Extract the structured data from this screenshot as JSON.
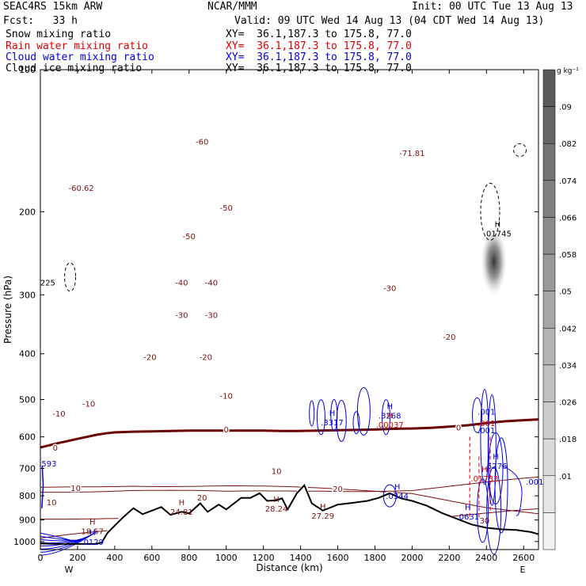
{
  "header": {
    "model": "SEAC4RS 15km ARW",
    "center": "NCAR/MMM",
    "init": "Init: 00 UTC Tue 13 Aug 13",
    "fcst": "Fcst:   33 h",
    "valid": "Valid: 09 UTC Wed 14 Aug 13 (04 CDT Wed 14 Aug 13)"
  },
  "legend": [
    {
      "name": "Snow mixing ratio",
      "color": "#000000",
      "xy": "XY=  36.1,187.3 to 175.8, 77.0"
    },
    {
      "name": "Rain water mixing ratio",
      "color": "#e00000",
      "xy": "XY=  36.1,187.3 to 175.8, 77.0"
    },
    {
      "name": "Cloud water mixing ratio",
      "color": "#0000e0",
      "xy": "XY=  36.1,187.3 to 175.8, 77.0"
    },
    {
      "name": "Cloud ice mixing ratio",
      "color": "#000000",
      "xy": "XY=  36.1,187.3 to 175.8, 77.0"
    }
  ],
  "colors": {
    "temperature": "#7a1010",
    "zero_isotherm": "#6a0000",
    "terrain": "#000000",
    "cloud_water": "#0000e0",
    "rain": "#e00000",
    "ice": "#000000"
  },
  "chart_data": {
    "type": "cross-section",
    "xlabel": "Distance (km)",
    "ylabel": "Pressure (hPa)",
    "xlim": [
      0,
      2680
    ],
    "ylim": [
      100,
      1040
    ],
    "y_scale": "log",
    "x_ticks": [
      "0",
      "200",
      "400",
      "600",
      "800",
      "1000",
      "1200",
      "1400",
      "1600",
      "1800",
      "2000",
      "2200",
      "2400",
      "2600"
    ],
    "y_ticks": [
      "200",
      "300",
      "400",
      "500",
      "600",
      "700",
      "800",
      "900",
      "1000"
    ],
    "hidden_y_tick_100": "100",
    "direction_labels": {
      "left": "W",
      "right": "E"
    },
    "colorbar": {
      "unit": "g kg⁻¹",
      "labels": [
        ".09",
        ".082",
        ".074",
        ".066",
        ".058",
        ".05",
        ".042",
        ".034",
        ".026",
        ".018",
        ".01"
      ],
      "grays": [
        "#5a5a5a",
        "#666666",
        "#737373",
        "#808080",
        "#8c8c8c",
        "#999999",
        "#a6a6a6",
        "#b3b3b3",
        "#c0c0c0",
        "#cdcdcd",
        "#dadada",
        "#e6e6e6",
        "#f2f2f2"
      ]
    },
    "temperature_isotherms_C": [
      -70,
      -60,
      -50,
      -40,
      -30,
      -20,
      -10,
      0,
      10,
      20
    ],
    "temperature_labels": [
      {
        "text": "-71.81",
        "x": 2000,
        "p": 150
      },
      {
        "text": "-60",
        "x": 870,
        "p": 142
      },
      {
        "text": "-60.62",
        "x": 220,
        "p": 178
      },
      {
        "text": "-50",
        "x": 1000,
        "p": 196
      },
      {
        "text": "-50",
        "x": 800,
        "p": 225
      },
      {
        "text": "-40",
        "x": 760,
        "p": 282
      },
      {
        "text": "-40",
        "x": 920,
        "p": 282
      },
      {
        "text": "-30",
        "x": 1880,
        "p": 290
      },
      {
        "text": "-30",
        "x": 760,
        "p": 331
      },
      {
        "text": "-30",
        "x": 920,
        "p": 331
      },
      {
        "text": "-20",
        "x": 2200,
        "p": 368
      },
      {
        "text": "-20",
        "x": 590,
        "p": 406
      },
      {
        "text": "-20",
        "x": 890,
        "p": 406
      },
      {
        "text": "-10",
        "x": 1000,
        "p": 490
      },
      {
        "text": "-10",
        "x": 260,
        "p": 510
      },
      {
        "text": "-10",
        "x": 100,
        "p": 535
      },
      {
        "text": "0",
        "x": 1000,
        "p": 578
      },
      {
        "text": "0",
        "x": 2250,
        "p": 573
      },
      {
        "text": "0",
        "x": 80,
        "p": 632
      },
      {
        "text": "10",
        "x": 1270,
        "p": 708
      },
      {
        "text": "10",
        "x": 190,
        "p": 770
      },
      {
        "text": "10",
        "x": 60,
        "p": 825
      },
      {
        "text": "20",
        "x": 1600,
        "p": 772
      },
      {
        "text": "20",
        "x": 870,
        "p": 806
      }
    ],
    "extremum_labels": [
      {
        "marker": "H",
        "value": "18.57",
        "x": 280,
        "p": 950,
        "color": "#7a1010"
      },
      {
        "marker": "H",
        "value": "24.81",
        "x": 760,
        "p": 864,
        "color": "#7a1010"
      },
      {
        "marker": "H",
        "value": "28.24",
        "x": 1270,
        "p": 851,
        "color": "#7a1010"
      },
      {
        "marker": "H",
        "value": "27.29",
        "x": 1520,
        "p": 880,
        "color": "#7a1010"
      },
      {
        "marker": "H",
        "value": ".3317",
        "x": 1570,
        "p": 558,
        "color": "#0000e0"
      },
      {
        "marker": "H",
        "value": ".3268",
        "x": 1880,
        "p": 540,
        "color": "#0000e0"
      },
      {
        "marker": "H",
        "value": ".00037",
        "x": 1880,
        "p": 565,
        "color": "#e00000"
      },
      {
        "marker": "H",
        "value": ".5276",
        "x": 2450,
        "p": 690,
        "color": "#0000e0"
      },
      {
        "marker": "H",
        "value": ".01733",
        "x": 2390,
        "p": 735,
        "color": "#e00000"
      },
      {
        "marker": "H",
        "value": ".0344",
        "x": 1920,
        "p": 800,
        "color": "#0000e0"
      },
      {
        "marker": "H",
        "value": ".0631",
        "x": 2300,
        "p": 885,
        "color": "#0000e0"
      },
      {
        "marker": "H",
        "value": ".01745",
        "x": 2460,
        "p": 222,
        "color": "#000000"
      },
      {
        "marker": "H",
        "value": ".0129",
        "x": 280,
        "p": 1000,
        "color": "#0000e0"
      }
    ],
    "other_labels": [
      {
        "text": ".001",
        "x": 2400,
        "p": 530,
        "color": "#0000e0"
      },
      {
        "text": ".001",
        "x": 2400,
        "p": 560,
        "color": "#e00000"
      },
      {
        "text": ".001",
        "x": 2400,
        "p": 580,
        "color": "#0000e0"
      },
      {
        "text": ".001",
        "x": 2660,
        "p": 746,
        "color": "#0000e0"
      },
      {
        "text": "225",
        "x": 40,
        "p": 282,
        "color": "#000000"
      },
      {
        "text": ".593",
        "x": 40,
        "p": 683,
        "color": "#0000e0"
      },
      {
        "text": "30",
        "x": 2390,
        "p": 901,
        "color": "#7a1010"
      }
    ],
    "terrain_surface_hPa": [
      [
        0,
        1010
      ],
      [
        100,
        1012
      ],
      [
        200,
        1012
      ],
      [
        300,
        1012
      ],
      [
        330,
        1005
      ],
      [
        360,
        960
      ],
      [
        400,
        925
      ],
      [
        450,
        885
      ],
      [
        500,
        850
      ],
      [
        550,
        875
      ],
      [
        600,
        860
      ],
      [
        650,
        845
      ],
      [
        700,
        878
      ],
      [
        760,
        865
      ],
      [
        800,
        872
      ],
      [
        860,
        830
      ],
      [
        900,
        865
      ],
      [
        960,
        835
      ],
      [
        1000,
        855
      ],
      [
        1080,
        808
      ],
      [
        1130,
        808
      ],
      [
        1180,
        790
      ],
      [
        1220,
        820
      ],
      [
        1270,
        818
      ],
      [
        1300,
        810
      ],
      [
        1330,
        855
      ],
      [
        1380,
        790
      ],
      [
        1420,
        760
      ],
      [
        1460,
        830
      ],
      [
        1520,
        860
      ],
      [
        1600,
        835
      ],
      [
        1680,
        828
      ],
      [
        1760,
        820
      ],
      [
        1820,
        808
      ],
      [
        1880,
        790
      ],
      [
        1940,
        810
      ],
      [
        2000,
        820
      ],
      [
        2080,
        840
      ],
      [
        2160,
        870
      ],
      [
        2240,
        895
      ],
      [
        2320,
        920
      ],
      [
        2400,
        935
      ],
      [
        2480,
        942
      ],
      [
        2560,
        945
      ],
      [
        2640,
        955
      ],
      [
        2680,
        965
      ]
    ],
    "zero_isotherm_hPa": [
      [
        0,
        632
      ],
      [
        50,
        625
      ],
      [
        100,
        618
      ],
      [
        150,
        612
      ],
      [
        200,
        606
      ],
      [
        250,
        600
      ],
      [
        300,
        594
      ],
      [
        350,
        590
      ],
      [
        400,
        587
      ],
      [
        500,
        585
      ],
      [
        600,
        584
      ],
      [
        700,
        583
      ],
      [
        800,
        582
      ],
      [
        900,
        582
      ],
      [
        1000,
        582
      ],
      [
        1100,
        582
      ],
      [
        1200,
        582
      ],
      [
        1300,
        583
      ],
      [
        1400,
        583
      ],
      [
        1500,
        582
      ],
      [
        1600,
        581
      ],
      [
        1700,
        580
      ],
      [
        1800,
        579
      ],
      [
        1900,
        577
      ],
      [
        2000,
        576
      ],
      [
        2100,
        574
      ],
      [
        2200,
        571
      ],
      [
        2300,
        567
      ],
      [
        2400,
        561
      ],
      [
        2500,
        556
      ],
      [
        2600,
        553
      ],
      [
        2680,
        551
      ]
    ]
  }
}
